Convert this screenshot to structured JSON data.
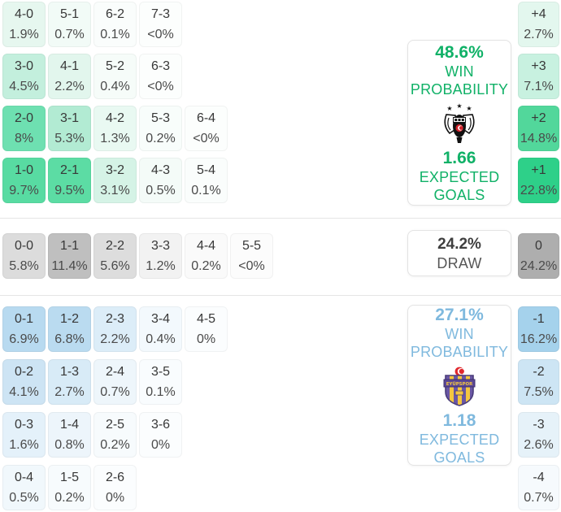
{
  "colors": {
    "home_accent": "#10b167",
    "away_accent": "#7fb9de",
    "draw_value_text": "#3f3f3f",
    "draw_label_text": "#565656",
    "home_cell_base": "#2ed089",
    "draw_cell_base": "#aeaeae",
    "away_cell_base": "#a5d2ec",
    "divider": "#e5e5e5"
  },
  "ui": {
    "home": {
      "rows": [
        [
          {
            "s": "4-0",
            "p": "1.9%",
            "bg": "#e6f7ef"
          },
          {
            "s": "5-1",
            "p": "0.7%",
            "bg": "#f2fbf7"
          },
          {
            "s": "6-2",
            "p": "0.1%",
            "bg": "#fafdfc"
          },
          {
            "s": "7-3",
            "p": "<0%",
            "bg": "#fcfefd"
          }
        ],
        [
          {
            "s": "3-0",
            "p": "4.5%",
            "bg": "#c3efdd"
          },
          {
            "s": "4-1",
            "p": "2.2%",
            "bg": "#e2f6ed"
          },
          {
            "s": "5-2",
            "p": "0.4%",
            "bg": "#f6fcf9"
          },
          {
            "s": "6-3",
            "p": "<0%",
            "bg": "#fcfefd"
          }
        ],
        [
          {
            "s": "2-0",
            "p": "8%",
            "bg": "#6ee0b1"
          },
          {
            "s": "3-1",
            "p": "5.3%",
            "bg": "#b2ebd3"
          },
          {
            "s": "4-2",
            "p": "1.3%",
            "bg": "#e9f9f2"
          },
          {
            "s": "5-3",
            "p": "0.2%",
            "bg": "#f8fdfb"
          },
          {
            "s": "6-4",
            "p": "<0%",
            "bg": "#fcfefd"
          }
        ],
        [
          {
            "s": "1-0",
            "p": "9.7%",
            "bg": "#58dba2"
          },
          {
            "s": "2-1",
            "p": "9.5%",
            "bg": "#5cdca4"
          },
          {
            "s": "3-2",
            "p": "3.1%",
            "bg": "#d5f3e6"
          },
          {
            "s": "4-3",
            "p": "0.5%",
            "bg": "#f4fbf8"
          },
          {
            "s": "5-4",
            "p": "0.1%",
            "bg": "#fafdfc"
          }
        ]
      ],
      "diffs": [
        {
          "s": "+4",
          "p": "2.7%",
          "bg": "#e3f7ee"
        },
        {
          "s": "+3",
          "p": "7.1%",
          "bg": "#c8f1e0"
        },
        {
          "s": "+2",
          "p": "14.8%",
          "bg": "#52d79b"
        },
        {
          "s": "+1",
          "p": "22.8%",
          "bg": "#2ed089"
        }
      ],
      "box": {
        "win_pct": "48.6%",
        "win_line1": "WIN",
        "win_line2": "PROBABILITY",
        "crest_icon": "besiktas-crest",
        "eg": "1.66",
        "eg_line1": "EXPECTED",
        "eg_line2": "GOALS"
      }
    },
    "draw": {
      "row": [
        {
          "s": "0-0",
          "p": "5.8%",
          "bg": "#dcdcdc"
        },
        {
          "s": "1-1",
          "p": "11.4%",
          "bg": "#bfbfbf"
        },
        {
          "s": "2-2",
          "p": "5.6%",
          "bg": "#dddddd"
        },
        {
          "s": "3-3",
          "p": "1.2%",
          "bg": "#f2f2f2"
        },
        {
          "s": "4-4",
          "p": "0.2%",
          "bg": "#fafafa"
        },
        {
          "s": "5-5",
          "p": "<0%",
          "bg": "#fcfcfc"
        }
      ],
      "diff": {
        "s": "0",
        "p": "24.2%",
        "bg": "#aeaeae"
      },
      "box": {
        "pct": "24.2%",
        "label": "DRAW"
      }
    },
    "away": {
      "rows": [
        [
          {
            "s": "0-1",
            "p": "6.9%",
            "bg": "#b8daf0"
          },
          {
            "s": "1-2",
            "p": "6.8%",
            "bg": "#badbf0"
          },
          {
            "s": "2-3",
            "p": "2.2%",
            "bg": "#dcedf8"
          },
          {
            "s": "3-4",
            "p": "0.4%",
            "bg": "#f3f9fd"
          },
          {
            "s": "4-5",
            "p": "0%",
            "bg": "#fbfdfe"
          }
        ],
        [
          {
            "s": "0-2",
            "p": "4.1%",
            "bg": "#cde4f4"
          },
          {
            "s": "1-3",
            "p": "2.7%",
            "bg": "#d8ebf7"
          },
          {
            "s": "2-4",
            "p": "0.7%",
            "bg": "#eef6fb"
          },
          {
            "s": "3-5",
            "p": "0.1%",
            "bg": "#f9fcfe"
          }
        ],
        [
          {
            "s": "0-3",
            "p": "1.6%",
            "bg": "#e4f1fa"
          },
          {
            "s": "1-4",
            "p": "0.8%",
            "bg": "#edf5fb"
          },
          {
            "s": "2-5",
            "p": "0.2%",
            "bg": "#f7fbfd"
          },
          {
            "s": "3-6",
            "p": "0%",
            "bg": "#fbfdfe"
          }
        ],
        [
          {
            "s": "0-4",
            "p": "0.5%",
            "bg": "#f1f8fc"
          },
          {
            "s": "1-5",
            "p": "0.2%",
            "bg": "#f7fbfd"
          },
          {
            "s": "2-6",
            "p": "0%",
            "bg": "#fbfdfe"
          }
        ]
      ],
      "diffs": [
        {
          "s": "-1",
          "p": "16.2%",
          "bg": "#a5d2ec"
        },
        {
          "s": "-2",
          "p": "7.5%",
          "bg": "#cde5f4"
        },
        {
          "s": "-3",
          "p": "2.6%",
          "bg": "#e6f2f9"
        },
        {
          "s": "-4",
          "p": "0.7%",
          "bg": "#f6fafd"
        }
      ],
      "box": {
        "win_pct": "27.1%",
        "win_line1": "WIN",
        "win_line2": "PROBABILITY",
        "crest_icon": "eyupspor-crest",
        "eg": "1.18",
        "eg_line1": "EXPECTED",
        "eg_line2": "GOALS"
      }
    }
  },
  "chart_data": {
    "type": "heatmap",
    "title": "Correct score & goal-difference probability matrix",
    "sections": [
      {
        "name": "home_win",
        "team_crest": "besiktas-crest",
        "win_probability_pct": 48.6,
        "expected_goals": 1.66,
        "scores": [
          [
            "4-0",
            1.9
          ],
          [
            "5-1",
            0.7
          ],
          [
            "6-2",
            0.1
          ],
          [
            "7-3",
            0
          ],
          [
            "3-0",
            4.5
          ],
          [
            "4-1",
            2.2
          ],
          [
            "5-2",
            0.4
          ],
          [
            "6-3",
            0
          ],
          [
            "2-0",
            8
          ],
          [
            "3-1",
            5.3
          ],
          [
            "4-2",
            1.3
          ],
          [
            "5-3",
            0.2
          ],
          [
            "6-4",
            0
          ],
          [
            "1-0",
            9.7
          ],
          [
            "2-1",
            9.5
          ],
          [
            "3-2",
            3.1
          ],
          [
            "4-3",
            0.5
          ],
          [
            "5-4",
            0.1
          ]
        ],
        "goal_diffs": [
          [
            "+4",
            2.7
          ],
          [
            "+3",
            7.1
          ],
          [
            "+2",
            14.8
          ],
          [
            "+1",
            22.8
          ]
        ]
      },
      {
        "name": "draw",
        "probability_pct": 24.2,
        "scores": [
          [
            "0-0",
            5.8
          ],
          [
            "1-1",
            11.4
          ],
          [
            "2-2",
            5.6
          ],
          [
            "3-3",
            1.2
          ],
          [
            "4-4",
            0.2
          ],
          [
            "5-5",
            0
          ]
        ],
        "goal_diffs": [
          [
            "0",
            24.2
          ]
        ]
      },
      {
        "name": "away_win",
        "team_crest": "eyupspor-crest",
        "win_probability_pct": 27.1,
        "expected_goals": 1.18,
        "scores": [
          [
            "0-1",
            6.9
          ],
          [
            "1-2",
            6.8
          ],
          [
            "2-3",
            2.2
          ],
          [
            "3-4",
            0.4
          ],
          [
            "4-5",
            0
          ],
          [
            "0-2",
            4.1
          ],
          [
            "1-3",
            2.7
          ],
          [
            "2-4",
            0.7
          ],
          [
            "3-5",
            0.1
          ],
          [
            "0-3",
            1.6
          ],
          [
            "1-4",
            0.8
          ],
          [
            "2-5",
            0.2
          ],
          [
            "3-6",
            0
          ],
          [
            "0-4",
            0.5
          ],
          [
            "1-5",
            0.2
          ],
          [
            "2-6",
            0
          ]
        ],
        "goal_diffs": [
          [
            "-1",
            16.2
          ],
          [
            "-2",
            7.5
          ],
          [
            "-3",
            2.6
          ],
          [
            "-4",
            0.7
          ]
        ]
      }
    ]
  }
}
